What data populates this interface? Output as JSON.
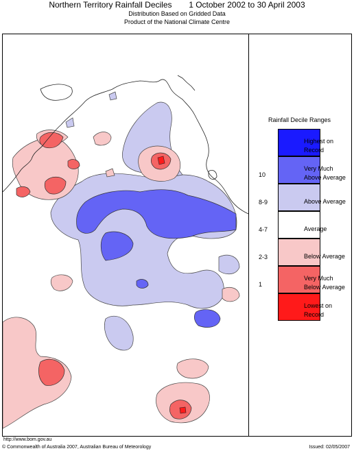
{
  "header": {
    "title": "Northern Territory Rainfall Deciles",
    "period": "1 October 2002 to 30 April 2003",
    "subtitle1": "Distribution Based on Gridded Data",
    "subtitle2": "Product of the National Climate Centre"
  },
  "legend": {
    "title": "Rainfall Decile Ranges",
    "items": [
      {
        "range": "",
        "label_line1": "Highest on",
        "label_line2": "Record",
        "color": "#1a1aff"
      },
      {
        "range": "10",
        "label_line1": "Very Much",
        "label_line2": "Above Average",
        "color": "#6464f5"
      },
      {
        "range": "8-9",
        "label_line1": "Above Average",
        "label_line2": "",
        "color": "#cacaf0"
      },
      {
        "range": "4-7",
        "label_line1": "Average",
        "label_line2": "",
        "color": "#ffffff"
      },
      {
        "range": "2-3",
        "label_line1": "Below Average",
        "label_line2": "",
        "color": "#f8c8c8"
      },
      {
        "range": "1",
        "label_line1": "Very Much",
        "label_line2": "Below Average",
        "color": "#f46464"
      },
      {
        "range": "",
        "label_line1": "Lowest on",
        "label_line2": "Record",
        "color": "#ff1a1a"
      }
    ]
  },
  "footer": {
    "url": "http://www.bom.gov.au",
    "copyright": "© Commonwealth of Australia 2007, Australian Bureau of Meteorology",
    "issued": "Issued: 02/05/2007"
  }
}
